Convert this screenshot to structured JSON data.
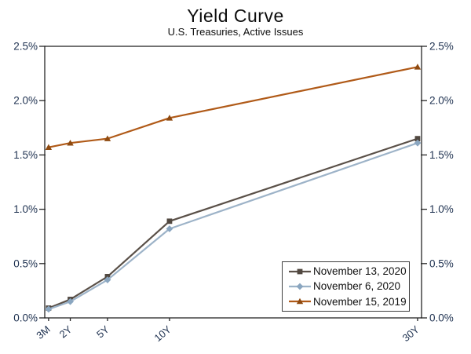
{
  "title": "Yield Curve",
  "subtitle": "U.S. Treasuries, Active Issues",
  "chart_data": {
    "type": "line",
    "title": "Yield Curve",
    "subtitle": "U.S. Treasuries, Active Issues",
    "categories": [
      "3M",
      "2Y",
      "5Y",
      "10Y",
      "30Y"
    ],
    "x_years": [
      0.25,
      2,
      5,
      10,
      30
    ],
    "y_ticks_labels": [
      "0.0%",
      "0.5%",
      "1.0%",
      "1.5%",
      "2.0%",
      "2.5%"
    ],
    "y_tick_values": [
      0,
      0.5,
      1.0,
      1.5,
      2.0,
      2.5
    ],
    "ylim": [
      0,
      2.5
    ],
    "grid": "none",
    "legend_position": "inside-bottom-right",
    "x_label_rotation_deg": -40,
    "series": [
      {
        "name": "November 13, 2020",
        "marker": "square",
        "line_color": "#5a5048",
        "marker_color": "#514840",
        "values": [
          0.09,
          0.17,
          0.38,
          0.89,
          1.65
        ]
      },
      {
        "name": "November 6, 2020",
        "marker": "diamond",
        "line_color": "#9db3c8",
        "marker_color": "#8aa6c0",
        "values": [
          0.08,
          0.15,
          0.35,
          0.82,
          1.61
        ]
      },
      {
        "name": "November 15, 2019",
        "marker": "triangle",
        "line_color": "#b05a18",
        "marker_color": "#8e4a10",
        "values": [
          1.57,
          1.61,
          1.65,
          1.84,
          2.31
        ]
      }
    ]
  },
  "colors": {
    "axis": "#262626",
    "tick_label": "#1e3150",
    "legend_border": "#3f3f3f",
    "background": "#ffffff"
  }
}
